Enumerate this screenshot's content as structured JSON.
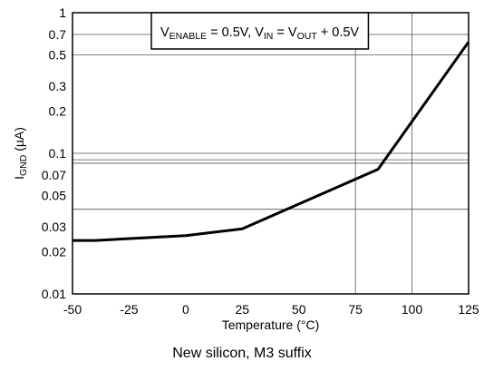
{
  "chart_data": {
    "type": "line",
    "xlabel": "Temperature (°C)",
    "ylabel": {
      "main": "I",
      "sub": "GND",
      "unit": " (µA)"
    },
    "xlim": [
      -50,
      125
    ],
    "ylim": [
      0.01,
      1
    ],
    "yscale": "log",
    "x_ticks": [
      -50,
      -25,
      0,
      25,
      50,
      75,
      100,
      125
    ],
    "x_tick_labels": [
      "-50",
      "-25",
      "0",
      "25",
      "50",
      "75",
      "100",
      "125"
    ],
    "y_ticks": [
      0.01,
      0.02,
      0.03,
      0.05,
      0.07,
      0.1,
      0.2,
      0.3,
      0.5,
      0.7,
      1
    ],
    "y_tick_labels": [
      "0.01",
      "0.02",
      "0.03",
      "0.05",
      "0.07",
      "0.1",
      "0.2",
      "0.3",
      "0.5",
      "0.7",
      "1"
    ],
    "y_gridlines": [
      0.04,
      0.085,
      0.09,
      0.1,
      0.5,
      0.7
    ],
    "x_gridlines": [
      75,
      100
    ],
    "grid": true,
    "series": [
      {
        "color": "#000000",
        "x": [
          -50,
          -40,
          0,
          25,
          85,
          125
        ],
        "y": [
          0.024,
          0.024,
          0.026,
          0.029,
          0.077,
          0.62
        ]
      }
    ],
    "annotation": {
      "parts": [
        {
          "t": "V",
          "sub": false
        },
        {
          "t": "ENABLE",
          "sub": true
        },
        {
          "t": " = 0.5V, V",
          "sub": false
        },
        {
          "t": "IN",
          "sub": true
        },
        {
          "t": " = V",
          "sub": false
        },
        {
          "t": "OUT",
          "sub": true
        },
        {
          "t": " + 0.5V",
          "sub": false
        }
      ]
    },
    "caption": "New silicon, M3 suffix"
  }
}
